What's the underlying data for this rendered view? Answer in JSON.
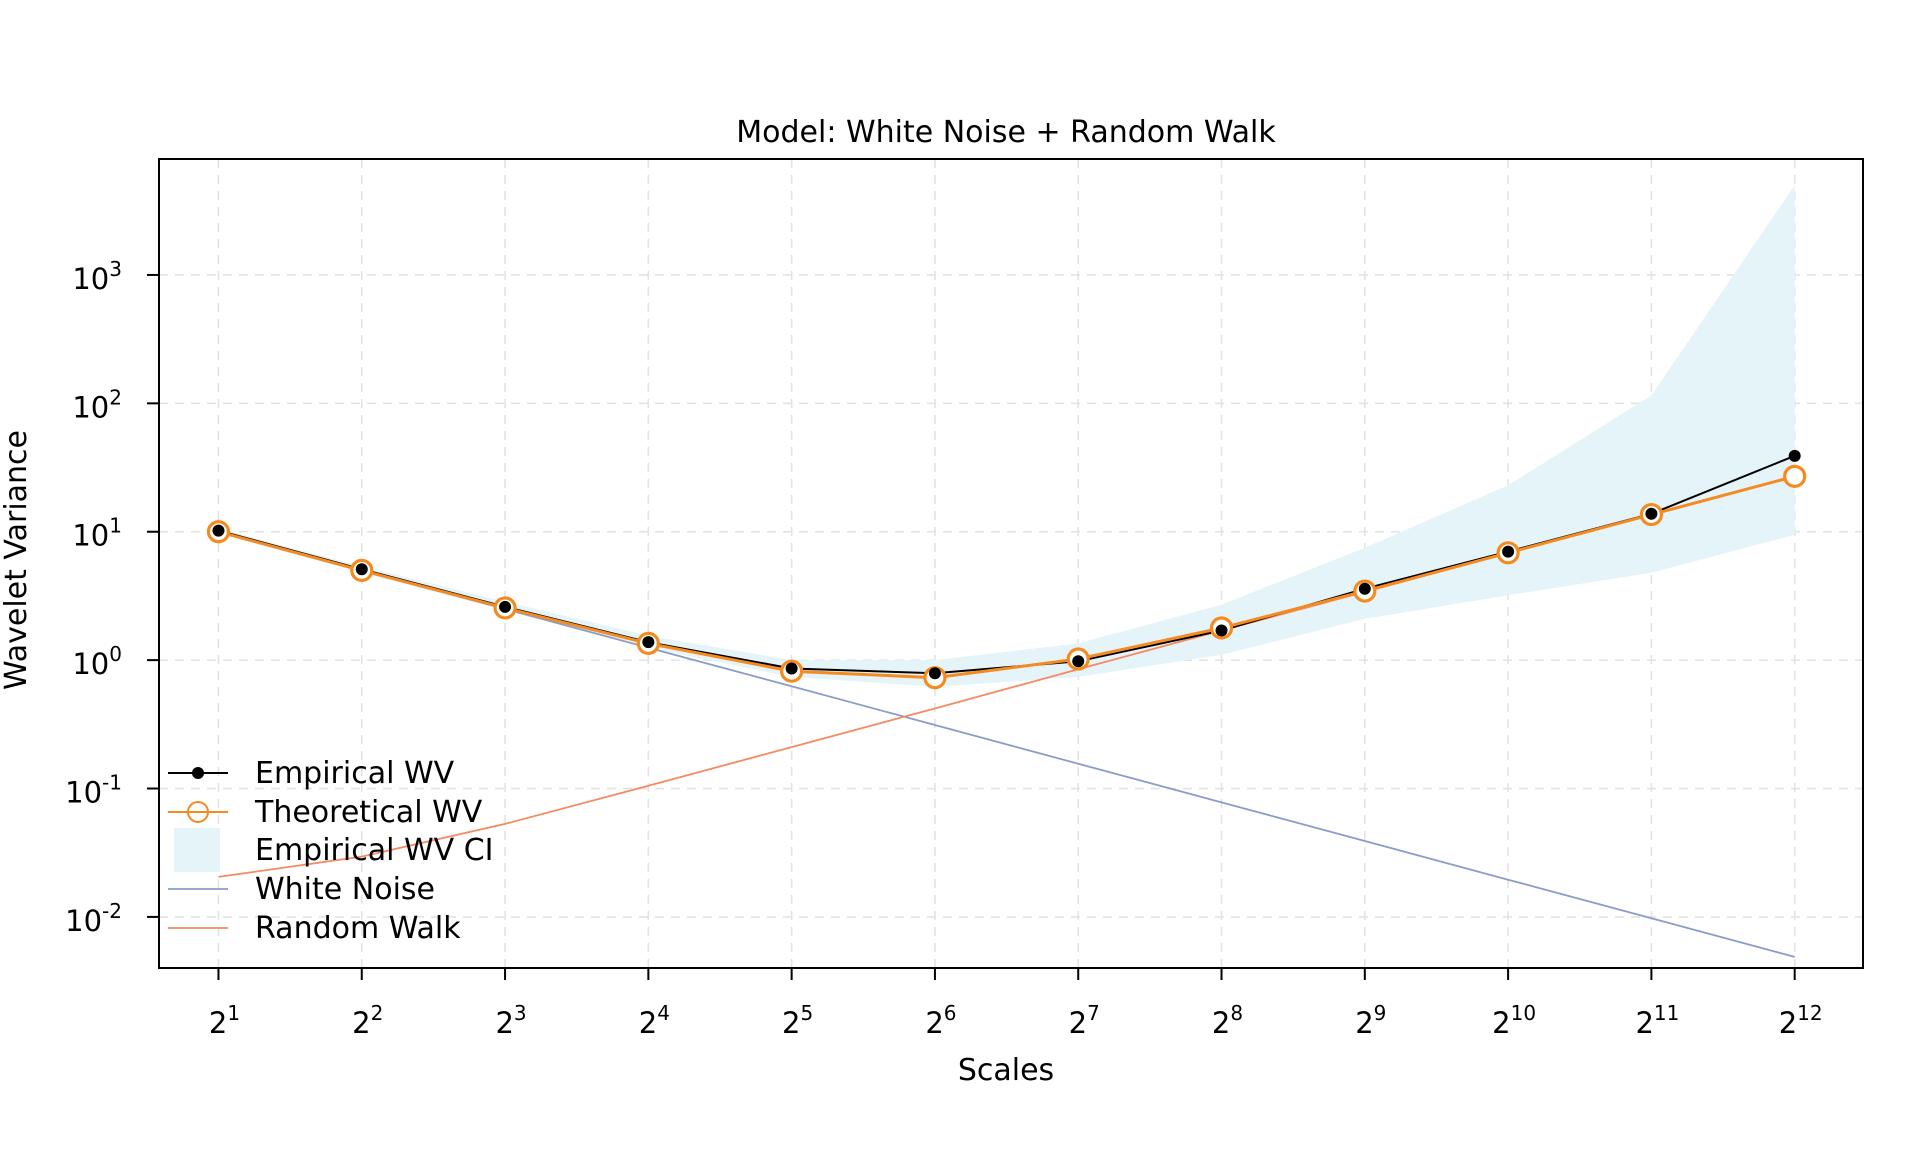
{
  "chart_data": {
    "type": "line",
    "title": "Model: White Noise + Random Walk",
    "xlabel": "Scales",
    "ylabel": "Wavelet Variance",
    "x_scale": "log2",
    "y_scale": "log10",
    "x": [
      2,
      4,
      8,
      16,
      32,
      64,
      128,
      256,
      512,
      1024,
      2048,
      4096
    ],
    "x_tick_labels": [
      {
        "base": "2",
        "exp": "1"
      },
      {
        "base": "2",
        "exp": "2"
      },
      {
        "base": "2",
        "exp": "3"
      },
      {
        "base": "2",
        "exp": "4"
      },
      {
        "base": "2",
        "exp": "5"
      },
      {
        "base": "2",
        "exp": "6"
      },
      {
        "base": "2",
        "exp": "7"
      },
      {
        "base": "2",
        "exp": "8"
      },
      {
        "base": "2",
        "exp": "9"
      },
      {
        "base": "2",
        "exp": "10"
      },
      {
        "base": "2",
        "exp": "11"
      },
      {
        "base": "2",
        "exp": "12"
      }
    ],
    "y_tick_labels": [
      {
        "base": "10",
        "exp": "-2",
        "value": 0.01
      },
      {
        "base": "10",
        "exp": "-1",
        "value": 0.1
      },
      {
        "base": "10",
        "exp": "0",
        "value": 1
      },
      {
        "base": "10",
        "exp": "1",
        "value": 10
      },
      {
        "base": "10",
        "exp": "2",
        "value": 100
      },
      {
        "base": "10",
        "exp": "3",
        "value": 1000
      }
    ],
    "xlim": [
      1.5,
      5700
    ],
    "ylim": [
      0.004,
      8000
    ],
    "grid": true,
    "legend_position": "bottom-left",
    "ci_color": "#e4f4f9",
    "series": [
      {
        "name": "Empirical WV",
        "style": "line-dot",
        "color": "#000000",
        "values": [
          10.2,
          5.1,
          2.6,
          1.38,
          0.86,
          0.79,
          0.98,
          1.7,
          3.6,
          7.0,
          13.8,
          39.0
        ]
      },
      {
        "name": "Theoretical WV",
        "style": "line-circle",
        "color": "#f58a1f",
        "values": [
          10.0,
          5.0,
          2.55,
          1.35,
          0.82,
          0.73,
          1.02,
          1.78,
          3.45,
          6.85,
          13.6,
          27.0
        ]
      },
      {
        "name": "Empirical WV CI",
        "style": "band",
        "color": "#e4f4f9",
        "lower": [
          9.7,
          4.8,
          2.45,
          1.25,
          0.74,
          0.62,
          0.74,
          1.1,
          2.1,
          3.2,
          4.8,
          9.5
        ],
        "upper": [
          10.6,
          5.4,
          2.85,
          1.55,
          1.0,
          1.0,
          1.35,
          2.7,
          7.5,
          23.0,
          115.0,
          5000.0
        ]
      },
      {
        "name": "White Noise",
        "style": "line",
        "color": "#8a9dc9",
        "values": [
          10.0,
          5.0,
          2.5,
          1.25,
          0.625,
          0.3125,
          0.156,
          0.078,
          0.039,
          0.0195,
          0.00977,
          0.00488
        ]
      },
      {
        "name": "Random Walk",
        "style": "line",
        "color": "#f58a63",
        "values": [
          0.0205,
          0.0295,
          0.053,
          0.105,
          0.21,
          0.42,
          0.85,
          1.7,
          3.4,
          6.8,
          13.6,
          27.0
        ]
      }
    ]
  }
}
